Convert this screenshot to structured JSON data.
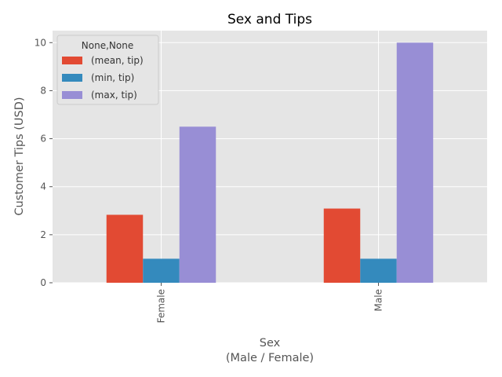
{
  "chart_data": {
    "type": "bar",
    "title": "Sex and Tips",
    "xlabel_line1": "Sex",
    "xlabel_line2": "(Male / Female)",
    "ylabel": "Customer Tips (USD)",
    "categories": [
      "Female",
      "Male"
    ],
    "series": [
      {
        "name": "(mean, tip)",
        "values": [
          2.83,
          3.09
        ],
        "color": "#E24A33"
      },
      {
        "name": "(min, tip)",
        "values": [
          1.0,
          1.0
        ],
        "color": "#348ABD"
      },
      {
        "name": "(max, tip)",
        "values": [
          6.5,
          10.0
        ],
        "color": "#988ED5"
      }
    ],
    "ylim": [
      0,
      10.5
    ],
    "yticks": [
      0,
      2,
      4,
      6,
      8,
      10
    ],
    "legend_title": "None,None",
    "legend_position": "top-left",
    "grid": true,
    "background": "#E5E5E5",
    "grid_color": "#FFFFFF"
  }
}
